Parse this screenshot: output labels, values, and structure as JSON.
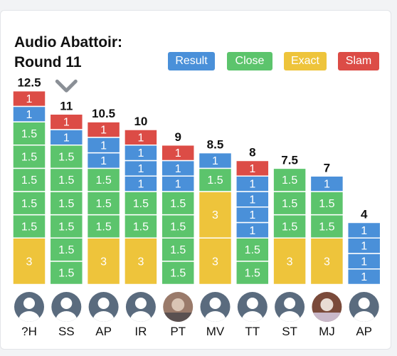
{
  "header": {
    "title_line1": "Audio Abattoir:",
    "title_line2": "Round 11"
  },
  "legend": [
    {
      "label": "Result",
      "color": "#4a90d9"
    },
    {
      "label": "Close",
      "color": "#5cc46c"
    },
    {
      "label": "Exact",
      "color": "#eec43b"
    },
    {
      "label": "Slam",
      "color": "#dc4c46"
    }
  ],
  "chart_data": {
    "type": "bar",
    "stacked": true,
    "title": "Audio Abattoir: Round 11",
    "categories": [
      "?H",
      "SS",
      "AP",
      "IR",
      "PT",
      "MV",
      "TT",
      "ST",
      "MJ",
      "AP"
    ],
    "totals": [
      "12.5",
      "11",
      "10.5",
      "10",
      "9",
      "8.5",
      "8",
      "7.5",
      "7",
      "4"
    ],
    "leader_marker": {
      "category_index": 1,
      "icon": "chevron-down-icon"
    },
    "colors": {
      "R": "#4a90d9",
      "C": "#5cc46c",
      "E": "#eec43b",
      "S": "#dc4c46"
    },
    "segments_bottom_to_top": [
      [
        {
          "t": "E",
          "v": 3
        },
        {
          "t": "C",
          "v": 1.5
        },
        {
          "t": "C",
          "v": 1.5
        },
        {
          "t": "C",
          "v": 1.5
        },
        {
          "t": "C",
          "v": 1.5
        },
        {
          "t": "C",
          "v": 1.5
        },
        {
          "t": "R",
          "v": 1
        },
        {
          "t": "S",
          "v": 1
        }
      ],
      [
        {
          "t": "C",
          "v": 1.5
        },
        {
          "t": "C",
          "v": 1.5
        },
        {
          "t": "C",
          "v": 1.5
        },
        {
          "t": "C",
          "v": 1.5
        },
        {
          "t": "C",
          "v": 1.5
        },
        {
          "t": "C",
          "v": 1.5
        },
        {
          "t": "R",
          "v": 1
        },
        {
          "t": "S",
          "v": 1
        }
      ],
      [
        {
          "t": "E",
          "v": 3
        },
        {
          "t": "C",
          "v": 1.5
        },
        {
          "t": "C",
          "v": 1.5
        },
        {
          "t": "C",
          "v": 1.5
        },
        {
          "t": "R",
          "v": 1
        },
        {
          "t": "R",
          "v": 1
        },
        {
          "t": "S",
          "v": 1
        }
      ],
      [
        {
          "t": "E",
          "v": 3
        },
        {
          "t": "C",
          "v": 1.5
        },
        {
          "t": "C",
          "v": 1.5
        },
        {
          "t": "R",
          "v": 1
        },
        {
          "t": "R",
          "v": 1
        },
        {
          "t": "R",
          "v": 1
        },
        {
          "t": "S",
          "v": 1
        }
      ],
      [
        {
          "t": "C",
          "v": 1.5
        },
        {
          "t": "C",
          "v": 1.5
        },
        {
          "t": "C",
          "v": 1.5
        },
        {
          "t": "C",
          "v": 1.5
        },
        {
          "t": "R",
          "v": 1
        },
        {
          "t": "R",
          "v": 1
        },
        {
          "t": "S",
          "v": 1
        }
      ],
      [
        {
          "t": "E",
          "v": 3
        },
        {
          "t": "E",
          "v": 3
        },
        {
          "t": "C",
          "v": 1.5
        },
        {
          "t": "R",
          "v": 1
        }
      ],
      [
        {
          "t": "C",
          "v": 1.5
        },
        {
          "t": "C",
          "v": 1.5
        },
        {
          "t": "R",
          "v": 1
        },
        {
          "t": "R",
          "v": 1
        },
        {
          "t": "R",
          "v": 1
        },
        {
          "t": "R",
          "v": 1
        },
        {
          "t": "S",
          "v": 1
        }
      ],
      [
        {
          "t": "E",
          "v": 3
        },
        {
          "t": "C",
          "v": 1.5
        },
        {
          "t": "C",
          "v": 1.5
        },
        {
          "t": "C",
          "v": 1.5
        }
      ],
      [
        {
          "t": "E",
          "v": 3
        },
        {
          "t": "C",
          "v": 1.5
        },
        {
          "t": "C",
          "v": 1.5
        },
        {
          "t": "R",
          "v": 1
        }
      ],
      [
        {
          "t": "R",
          "v": 1
        },
        {
          "t": "R",
          "v": 1
        },
        {
          "t": "R",
          "v": 1
        },
        {
          "t": "R",
          "v": 1
        }
      ]
    ],
    "avatars": [
      "default",
      "default",
      "default",
      "default",
      "photo",
      "default",
      "default",
      "default",
      "photo",
      "default"
    ]
  }
}
